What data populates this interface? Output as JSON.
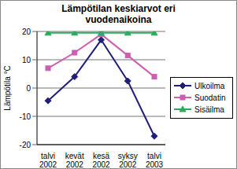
{
  "chart_data": {
    "type": "line",
    "title": "Lämpötilan keskiarvot eri vuodenaikoina",
    "y_label": "Lämpötila °C",
    "categories": [
      "talvi 2002",
      "kevät 2002",
      "kesä 2002",
      "syksy 2002",
      "talvi 2003"
    ],
    "series": [
      {
        "name": "Ulkoilma",
        "color": "#1f1f7a",
        "marker": "diamond",
        "values": [
          -4.5,
          4,
          17,
          2.5,
          -17
        ]
      },
      {
        "name": "Suodatin",
        "color": "#cc5fb0",
        "marker": "square",
        "values": [
          7,
          12.5,
          19,
          11.5,
          4
        ]
      },
      {
        "name": "Sisäilma",
        "color": "#2eaa5e",
        "marker": "triangle",
        "values": [
          19.5,
          19.5,
          19.5,
          19.5,
          19.5
        ]
      }
    ],
    "ylim": [
      -20,
      20
    ],
    "yticks": [
      -20,
      -10,
      0,
      10,
      20
    ],
    "grid": true,
    "legend": "right"
  }
}
